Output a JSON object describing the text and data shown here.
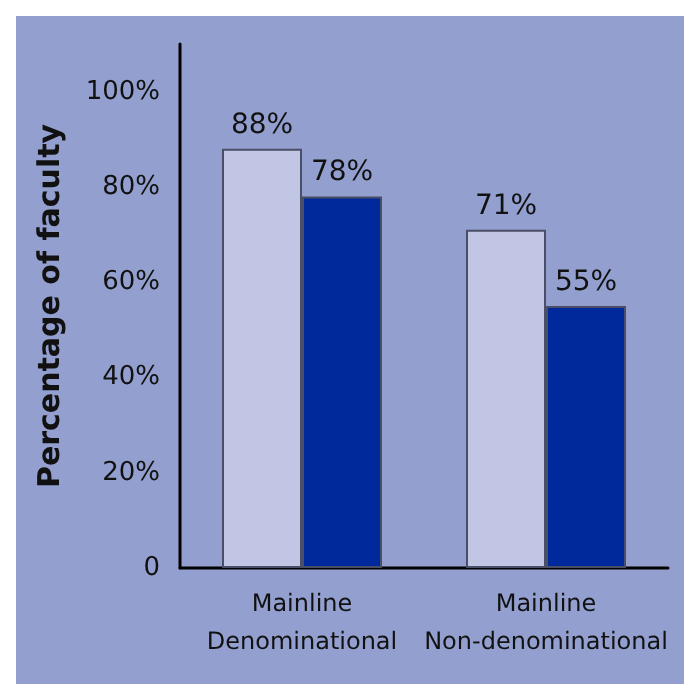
{
  "chart_data": {
    "type": "bar",
    "ylabel": "Percentage of faculty",
    "categories": [
      "Mainline\nDenominational",
      "Mainline\nNon-denominational"
    ],
    "series": [
      {
        "color": "#c0c6e4",
        "values": [
          88,
          71
        ],
        "value_labels": [
          "88%",
          "71%"
        ]
      },
      {
        "color": "#002a9c",
        "values": [
          78,
          55
        ],
        "value_labels": [
          "78%",
          "55%"
        ]
      }
    ],
    "ylim": [
      0,
      110
    ],
    "yticks": [
      0,
      {
        "value": 20,
        "label": "20%"
      },
      {
        "value": 40,
        "label": "40%"
      },
      {
        "value": 60,
        "label": "60%"
      },
      {
        "value": 80,
        "label": "80%"
      },
      {
        "value": 100,
        "label": "100%"
      }
    ],
    "grid": false
  }
}
